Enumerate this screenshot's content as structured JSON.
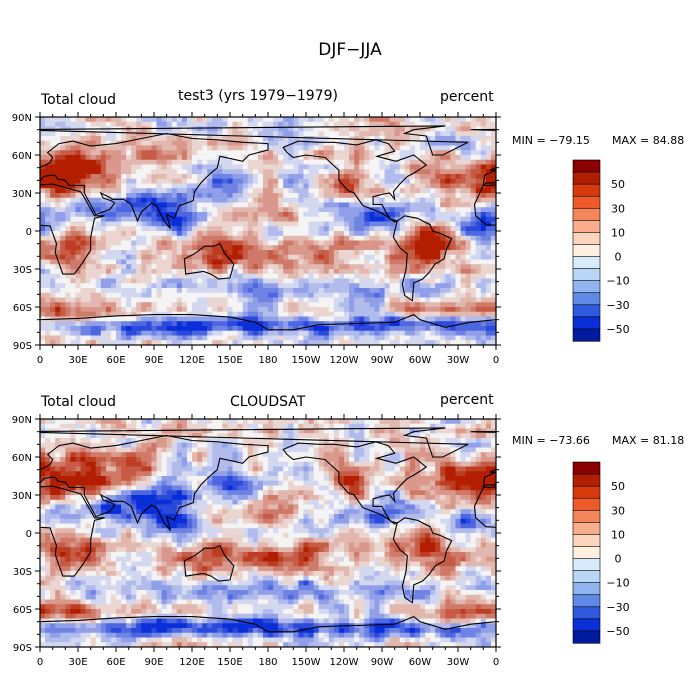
{
  "page": {
    "title": "DJF−JJA"
  },
  "panels": [
    {
      "left_label": "Total cloud",
      "center_label": "test3 (yrs 1979−1979)",
      "right_label": "percent",
      "min_text": "MIN = −79.15",
      "max_text": "MAX =  84.88",
      "lat_ticks": [
        "90N",
        "60N",
        "30N",
        "0",
        "30S",
        "60S",
        "90S"
      ],
      "lon_ticks": [
        "0",
        "30E",
        "60E",
        "90E",
        "120E",
        "150E",
        "180",
        "150W",
        "120W",
        "90W",
        "60W",
        "30W",
        "0"
      ],
      "colorbar_labels": [
        "50",
        "30",
        "10",
        "0",
        "−10",
        "−30",
        "−50"
      ]
    },
    {
      "left_label": "Total cloud",
      "center_label": "CLOUDSAT",
      "right_label": "percent",
      "min_text": "MIN = −73.66",
      "max_text": "MAX =  81.18",
      "lat_ticks": [
        "90N",
        "60N",
        "30N",
        "0",
        "30S",
        "60S",
        "90S"
      ],
      "lon_ticks": [
        "0",
        "30E",
        "60E",
        "90E",
        "120E",
        "150E",
        "180",
        "150W",
        "120W",
        "90W",
        "60W",
        "30W",
        "0"
      ],
      "colorbar_labels": [
        "50",
        "30",
        "10",
        "0",
        "−10",
        "−30",
        "−50"
      ]
    }
  ],
  "colorbar_colors": [
    "#8b0000",
    "#b21e00",
    "#d83a0b",
    "#ef5a2a",
    "#f5865c",
    "#f9ad8c",
    "#fcd5bd",
    "#fff0e0",
    "#d8ebfa",
    "#b8d5f5",
    "#8fb4ef",
    "#5f8ae6",
    "#2f5ae0",
    "#0a2ed8",
    "#001aa0"
  ],
  "color_scale": {
    "high": "#b41e00",
    "neutral": "#f4f4f4",
    "low": "#0a2ed8"
  }
}
